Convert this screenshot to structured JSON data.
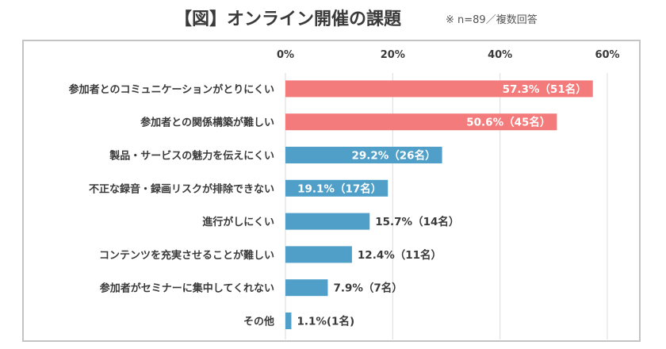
{
  "header": {
    "title": "【図】オンライン開催の課題",
    "note": "※ n=89／複数回答"
  },
  "chart_data": {
    "type": "bar",
    "orientation": "horizontal",
    "title": "【図】オンライン開催の課題",
    "subtitle": "※ n=89／複数回答",
    "xlabel": "",
    "ylabel": "",
    "xlim": [
      0,
      60
    ],
    "ticks": [
      "0%",
      "20%",
      "40%",
      "60%"
    ],
    "tick_values": [
      0,
      20,
      40,
      60
    ],
    "grid": true,
    "colors": {
      "highlight": "#f47b7b",
      "normal": "#4f9fc8"
    },
    "categories": [
      "参加者とのコミュニケーションがとりにくい",
      "参加者との関係構築が難しい",
      "製品・サービスの魅力を伝えにくい",
      "不正な録音・録画リスクが排除できない",
      "進行がしにくい",
      "コンテンツを充実させることが難しい",
      "参加者がセミナーに集中してくれない",
      "その他"
    ],
    "values": [
      57.3,
      50.6,
      29.2,
      19.1,
      15.7,
      12.4,
      7.9,
      1.1
    ],
    "counts": [
      51,
      45,
      26,
      17,
      14,
      11,
      7,
      1
    ],
    "labels": [
      "57.3%（51名）",
      "50.6%（45名）",
      "29.2%（26名）",
      "19.1%（17名）",
      "15.7%（14名）",
      "12.4%（11名）",
      "7.9%（7名）",
      "1.1%(1名)"
    ],
    "highlighted": [
      true,
      true,
      false,
      false,
      false,
      false,
      false,
      false
    ],
    "label_inside": [
      true,
      true,
      true,
      true,
      false,
      false,
      false,
      false
    ]
  }
}
